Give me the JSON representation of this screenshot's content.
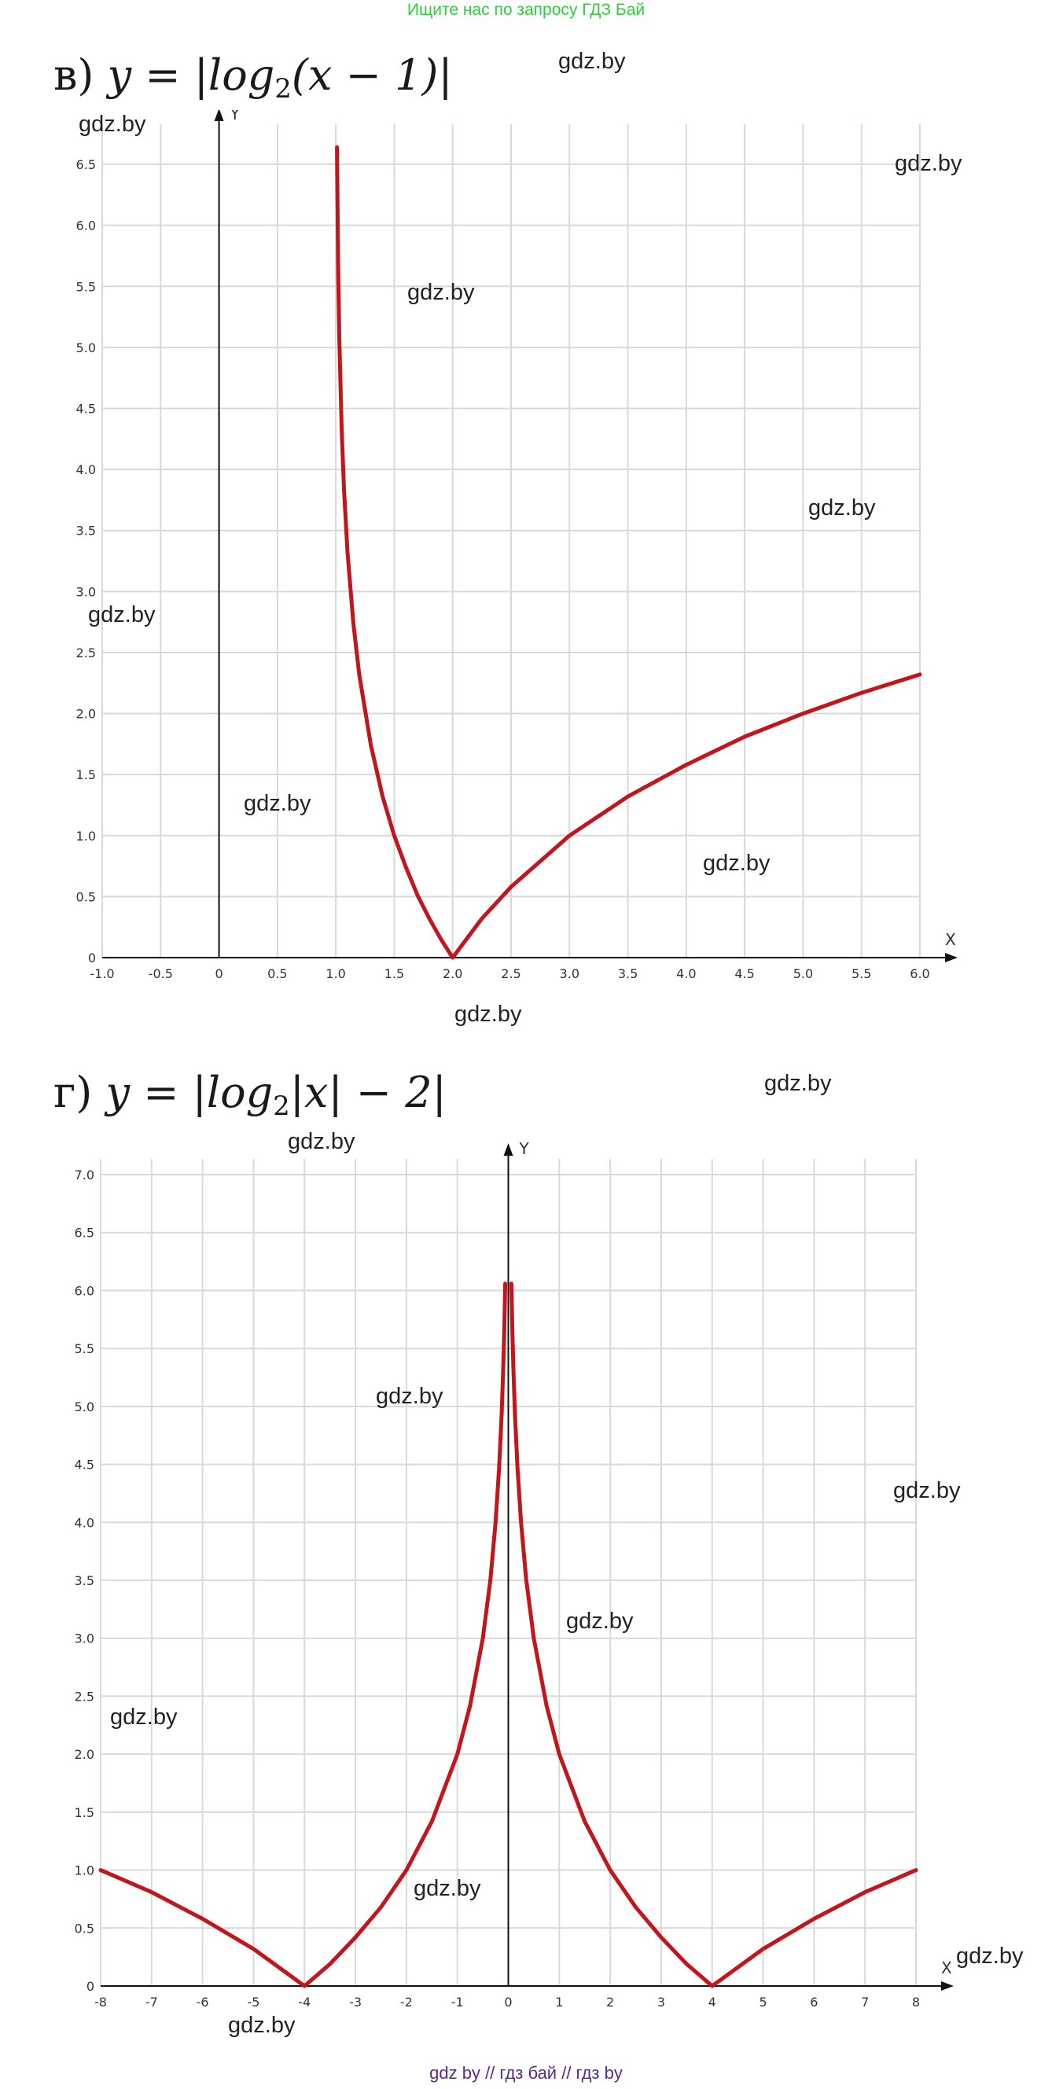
{
  "banner": "Ищите нас по запросу ГДЗ Бай",
  "footer": "gdz by  //  гдз бай  //  гдз by",
  "watermark_text": "gdz.by",
  "colors": {
    "curve": "#c0161c",
    "grid": "#d9d9d9",
    "axis": "#111111",
    "banner": "#2fcc3f",
    "footer": "#5b2a86"
  },
  "chart_data": [
    {
      "type": "line",
      "formula": {
        "prefix": "в)",
        "func": "y = |log",
        "base": "2",
        "arg": "(x − 1)|"
      },
      "xlabel": "X",
      "ylabel": "Y",
      "xlim": [
        -1.0,
        6.0
      ],
      "ylim": [
        0,
        6.7
      ],
      "x_ticks": [
        "-1.0",
        "-0.5",
        "0",
        "0.5",
        "1.0",
        "1.5",
        "2.0",
        "2.5",
        "3.0",
        "3.5",
        "4.0",
        "4.5",
        "5.0",
        "5.5",
        "6.0"
      ],
      "y_ticks": [
        "0",
        "0.5",
        "1.0",
        "1.5",
        "2.0",
        "2.5",
        "3.0",
        "3.5",
        "4.0",
        "4.5",
        "5.0",
        "5.5",
        "6.0",
        "6.5"
      ],
      "grid": true,
      "series": [
        {
          "color": "#c0161c",
          "x": [
            1.01,
            1.02,
            1.03,
            1.05,
            1.07,
            1.1,
            1.15,
            1.2,
            1.3,
            1.4,
            1.5,
            1.6,
            1.7,
            1.8,
            1.9,
            2.0,
            2.25,
            2.5,
            3.0,
            3.5,
            4.0,
            4.5,
            5.0,
            5.5,
            6.0
          ],
          "y": [
            6.64,
            5.64,
            5.06,
            4.32,
            3.84,
            3.32,
            2.74,
            2.32,
            1.74,
            1.32,
            1.0,
            0.74,
            0.51,
            0.32,
            0.15,
            0.0,
            0.32,
            0.58,
            1.0,
            1.32,
            1.58,
            1.81,
            2.0,
            2.17,
            2.32
          ]
        }
      ]
    },
    {
      "type": "line",
      "formula": {
        "prefix": "г)",
        "func": "y = |log",
        "base": "2",
        "arg": "|x| − 2|"
      },
      "xlabel": "X",
      "ylabel": "Y",
      "xlim": [
        -8,
        8
      ],
      "ylim": [
        0,
        7.0
      ],
      "x_ticks": [
        "-8",
        "-7",
        "-6",
        "-5",
        "-4",
        "-3",
        "-2",
        "-1",
        "0",
        "1",
        "2",
        "3",
        "4",
        "5",
        "6",
        "7",
        "8"
      ],
      "y_ticks": [
        "0",
        "0.5",
        "1.0",
        "1.5",
        "2.0",
        "2.5",
        "3.0",
        "3.5",
        "4.0",
        "4.5",
        "5.0",
        "5.5",
        "6.0",
        "6.5",
        "7.0"
      ],
      "grid": true,
      "series": [
        {
          "color": "#c0161c",
          "x": [
            -8,
            -7,
            -6,
            -5,
            -4,
            -3.5,
            -3,
            -2.5,
            -2,
            -1.5,
            -1,
            -0.75,
            -0.5,
            -0.35,
            -0.25,
            -0.18,
            -0.13,
            -0.1,
            -0.08,
            -0.06,
            0.06,
            0.08,
            0.1,
            0.13,
            0.18,
            0.25,
            0.35,
            0.5,
            0.75,
            1,
            1.5,
            2,
            2.5,
            3,
            3.5,
            4,
            5,
            6,
            7,
            8
          ],
          "y": [
            1.0,
            0.81,
            0.58,
            0.32,
            0.0,
            0.19,
            0.42,
            0.68,
            1.0,
            1.42,
            2.0,
            2.42,
            3.0,
            3.51,
            4.0,
            4.47,
            4.94,
            5.32,
            5.64,
            6.06,
            6.06,
            5.64,
            5.32,
            4.94,
            4.47,
            4.0,
            3.51,
            3.0,
            2.42,
            2.0,
            1.42,
            1.0,
            0.68,
            0.42,
            0.19,
            0.0,
            0.32,
            0.58,
            0.81,
            1.0
          ]
        }
      ]
    }
  ]
}
